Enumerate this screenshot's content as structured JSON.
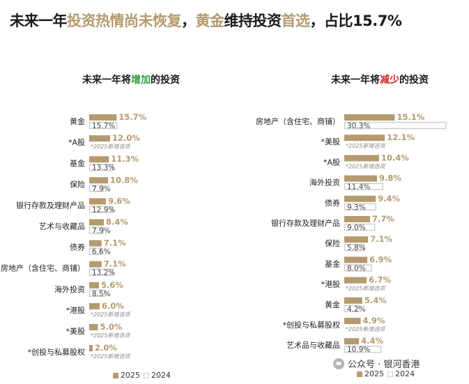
{
  "header": {
    "title_p1": "未来一年",
    "title_p2": "投资热情尚未恢复",
    "title_p3": "，",
    "title_p4": "黄金",
    "title_p5": "维持投资",
    "title_p6": "首选",
    "title_p7": "，占比15.7%"
  },
  "colors": {
    "y2025": "#b49a6e",
    "y2024": "#ffffff",
    "y2024_border": "#cfcfcf",
    "value_label": "#b49a6e",
    "increase": "#2e9e3e",
    "decrease": "#e02020"
  },
  "watermark": {
    "text": "公众号 · 银河香港",
    "icon": "wechat-icon"
  },
  "chart_data": [
    {
      "type": "bar",
      "title_p1": "未来一年将",
      "title_p2": "增加",
      "title_p3": "的投资",
      "legend": [
        "2025",
        "2024"
      ],
      "legend_position": "bottom",
      "new_option_note": "*2025新增选项",
      "categories": [
        "黄金",
        "*A股",
        "基金",
        "保险",
        "银行存款及理财产品",
        "艺术与收藏品",
        "债券",
        "房地产（含住宅、商铺）",
        "海外投资",
        "*港股",
        "*美股",
        "*创投与私募股权"
      ],
      "series": [
        {
          "name": "2025",
          "values": [
            15.7,
            12.0,
            11.3,
            10.8,
            9.6,
            8.4,
            7.1,
            7.1,
            5.6,
            6.0,
            5.0,
            2.0
          ]
        },
        {
          "name": "2024",
          "values": [
            15.7,
            null,
            13.3,
            7.9,
            12.9,
            7.9,
            6.6,
            13.2,
            8.5,
            null,
            null,
            null
          ]
        }
      ],
      "labels_2025": [
        "15.7%",
        "12.0%",
        "11.3%",
        "10.8%",
        "9.6%",
        "8.4%",
        "7.1%",
        "7.1%",
        "5.6%",
        "6.0%",
        "5.0%",
        "2.0%"
      ],
      "labels_2024": [
        "15.7%",
        "",
        "13.3%",
        "7.9%",
        "12.9%",
        "7.9%",
        "6.6%",
        "13.2%",
        "8.5%",
        "",
        "",
        ""
      ],
      "xlim": [
        0,
        30
      ]
    },
    {
      "type": "bar",
      "title_p1": "未来一年将",
      "title_p2": "减少",
      "title_p3": "的投资",
      "legend": [
        "2025",
        "2024"
      ],
      "legend_position": "bottom",
      "new_option_note": "*2025新增选项",
      "categories": [
        "房地产（含住宅、商铺）",
        "*美股",
        "*A股",
        "海外投资",
        "债券",
        "银行存款及理财产品",
        "保险",
        "基金",
        "*港股",
        "黄金",
        "*创投与私募股权",
        "艺术品与收藏品"
      ],
      "series": [
        {
          "name": "2025",
          "values": [
            15.1,
            12.1,
            10.4,
            9.8,
            9.4,
            7.7,
            7.1,
            6.9,
            6.7,
            5.4,
            4.9,
            4.4
          ]
        },
        {
          "name": "2024",
          "values": [
            30.3,
            null,
            null,
            11.4,
            9.3,
            9.0,
            5.8,
            8.0,
            null,
            4.2,
            null,
            10.9
          ]
        }
      ],
      "labels_2025": [
        "15.1%",
        "12.1%",
        "10.4%",
        "9.8%",
        "9.4%",
        "7.7%",
        "7.1%",
        "6.9%",
        "6.7%",
        "5.4%",
        "4.9%",
        "4.4%"
      ],
      "labels_2024": [
        "30.3%",
        "",
        "",
        "11.4%",
        "9.3%",
        "9.0%",
        "5.8%",
        "8.0%",
        "",
        "4.2%",
        "",
        "10.9%"
      ],
      "xlim": [
        0,
        30.3
      ]
    }
  ]
}
